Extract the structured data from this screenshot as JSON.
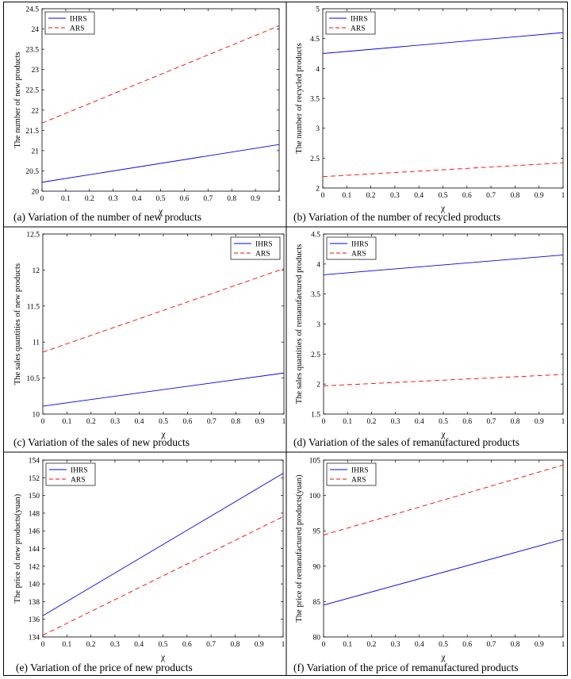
{
  "colors": {
    "IHRS": "#0000ff",
    "ARS": "#ff0000"
  },
  "chart_data": [
    {
      "id": "a",
      "type": "line",
      "x": [
        0,
        1
      ],
      "series": [
        {
          "name": "IHRS",
          "values": [
            20.22,
            21.15
          ],
          "style": "solid"
        },
        {
          "name": "ARS",
          "values": [
            21.68,
            24.08
          ],
          "style": "dashed"
        }
      ],
      "xlabel": "χ",
      "ylabel": "The number of new products",
      "xlim": [
        0,
        1
      ],
      "ylim": [
        20,
        24.5
      ],
      "xticks": [
        0,
        0.1,
        0.2,
        0.3,
        0.4,
        0.5,
        0.6,
        0.7,
        0.8,
        0.9,
        1
      ],
      "xtick_labels": [
        "0",
        "0.1",
        "0.2",
        "0.3",
        "0.4",
        "0.5",
        "0.6",
        "0.7",
        "0.8",
        "0.9",
        "1"
      ],
      "yticks": [
        20,
        20.5,
        21,
        21.5,
        22,
        22.5,
        23,
        23.5,
        24,
        24.5
      ],
      "ytick_labels": [
        "20",
        "20.5",
        "21",
        "21.5",
        "22",
        "22.5",
        "23",
        "23.5",
        "24",
        "24.5"
      ],
      "legend": "top-left",
      "caption": "(a)    Variation of the number of new products"
    },
    {
      "id": "b",
      "type": "line",
      "x": [
        0,
        1
      ],
      "series": [
        {
          "name": "IHRS",
          "values": [
            4.25,
            4.6
          ],
          "style": "solid"
        },
        {
          "name": "ARS",
          "values": [
            2.19,
            2.42
          ],
          "style": "dashed"
        }
      ],
      "xlabel": "χ",
      "ylabel": "The number of recycled products",
      "xlim": [
        0,
        1
      ],
      "ylim": [
        2,
        5
      ],
      "xticks": [
        0,
        0.1,
        0.2,
        0.3,
        0.4,
        0.5,
        0.6,
        0.7,
        0.8,
        0.9,
        1
      ],
      "xtick_labels": [
        "0",
        "0.1",
        "0.2",
        "0.3",
        "0.4",
        "0.5",
        "0.6",
        "0.7",
        "0.8",
        "0.9",
        "1"
      ],
      "yticks": [
        2,
        2.5,
        3,
        3.5,
        4,
        4.5,
        5
      ],
      "ytick_labels": [
        "2",
        "2.5",
        "3",
        "3.5",
        "4",
        "4.5",
        "5"
      ],
      "legend": "top-left",
      "caption": "(b)    Variation of the number of recycled products"
    },
    {
      "id": "c",
      "type": "line",
      "x": [
        0,
        1
      ],
      "series": [
        {
          "name": "IHRS",
          "values": [
            10.11,
            10.57
          ],
          "style": "solid"
        },
        {
          "name": "ARS",
          "values": [
            10.86,
            12.02
          ],
          "style": "dashed"
        }
      ],
      "xlabel": "χ",
      "ylabel": "The sales quantities of new products",
      "xlim": [
        0,
        1
      ],
      "ylim": [
        10,
        12.5
      ],
      "xticks": [
        0,
        0.1,
        0.2,
        0.3,
        0.4,
        0.5,
        0.6,
        0.7,
        0.8,
        0.9,
        1
      ],
      "xtick_labels": [
        "0",
        "0.1",
        "0.2",
        "0.3",
        "0.4",
        "0.5",
        "0.6",
        "0.7",
        "0.8",
        "0.9",
        "1"
      ],
      "yticks": [
        10,
        10.5,
        11,
        11.5,
        12,
        12.5
      ],
      "ytick_labels": [
        "10",
        "10.5",
        "11",
        "11.5",
        "12",
        "12.5"
      ],
      "legend": "top-right",
      "caption": "(c)    Variation of the sales of new products"
    },
    {
      "id": "d",
      "type": "line",
      "x": [
        0,
        1
      ],
      "series": [
        {
          "name": "IHRS",
          "values": [
            3.82,
            4.15
          ],
          "style": "solid"
        },
        {
          "name": "ARS",
          "values": [
            1.97,
            2.16
          ],
          "style": "dashed"
        }
      ],
      "xlabel": "χ",
      "ylabel": "The sales quantities of remanufactured products",
      "xlim": [
        0,
        1
      ],
      "ylim": [
        1.5,
        4.5
      ],
      "xticks": [
        0,
        0.1,
        0.2,
        0.3,
        0.4,
        0.5,
        0.6,
        0.7,
        0.8,
        0.9,
        1
      ],
      "xtick_labels": [
        "0",
        "0.1",
        "0.2",
        "0.3",
        "0.4",
        "0.5",
        "0.6",
        "0.7",
        "0.8",
        "0.9",
        "1"
      ],
      "yticks": [
        1.5,
        2,
        2.5,
        3,
        3.5,
        4,
        4.5
      ],
      "ytick_labels": [
        "1.5",
        "2",
        "2.5",
        "3",
        "3.5",
        "4",
        "4.5"
      ],
      "legend": "top-left",
      "caption": "(d)    Variation of the sales of remanufactured products"
    },
    {
      "id": "e",
      "type": "line",
      "x": [
        0,
        1
      ],
      "series": [
        {
          "name": "IHRS",
          "values": [
            136.4,
            152.5
          ],
          "style": "solid"
        },
        {
          "name": "ARS",
          "values": [
            134.2,
            147.6
          ],
          "style": "dashed"
        }
      ],
      "xlabel": "χ",
      "ylabel": "The price of new products(yuan)",
      "xlim": [
        0,
        1
      ],
      "ylim": [
        134,
        154
      ],
      "xticks": [
        0,
        0.1,
        0.2,
        0.3,
        0.4,
        0.5,
        0.6,
        0.7,
        0.8,
        0.9,
        1
      ],
      "xtick_labels": [
        "0",
        "0.1",
        "0.2",
        "0.3",
        "0.4",
        "0.5",
        "0.6",
        "0.7",
        "0.8",
        "0.9",
        "1"
      ],
      "yticks": [
        134,
        136,
        138,
        140,
        142,
        144,
        146,
        148,
        150,
        152,
        154
      ],
      "ytick_labels": [
        "134",
        "136",
        "138",
        "140",
        "142",
        "144",
        "146",
        "148",
        "150",
        "152",
        "154"
      ],
      "legend": "top-left",
      "caption": "(e) Variation of the price of new products"
    },
    {
      "id": "f",
      "type": "line",
      "x": [
        0,
        1
      ],
      "series": [
        {
          "name": "IHRS",
          "values": [
            84.5,
            93.8
          ],
          "style": "solid"
        },
        {
          "name": "ARS",
          "values": [
            94.4,
            104.3
          ],
          "style": "dashed"
        }
      ],
      "xlabel": "χ",
      "ylabel": "The price of remanufactured products(yuan)",
      "xlim": [
        0,
        1
      ],
      "ylim": [
        80,
        105
      ],
      "xticks": [
        0,
        0.1,
        0.2,
        0.3,
        0.4,
        0.5,
        0.6,
        0.7,
        0.8,
        0.9,
        1
      ],
      "xtick_labels": [
        "0",
        "0.1",
        "0.2",
        "0.3",
        "0.4",
        "0.5",
        "0.6",
        "0.7",
        "0.8",
        "0.9",
        "1"
      ],
      "yticks": [
        80,
        85,
        90,
        95,
        100,
        105
      ],
      "ytick_labels": [
        "80",
        "85",
        "90",
        "95",
        "100",
        "105"
      ],
      "legend": "top-left",
      "caption": "(f) Variation of the price of remanufactured products"
    }
  ]
}
